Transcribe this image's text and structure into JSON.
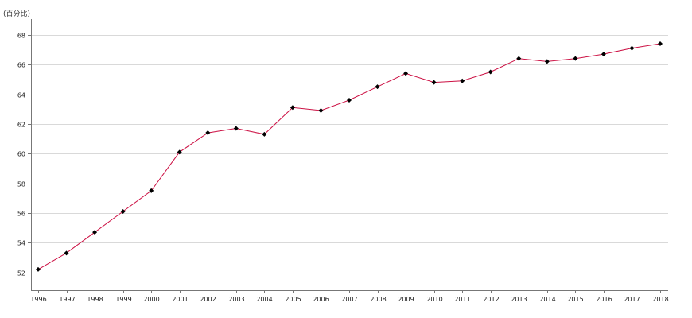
{
  "chart_data": {
    "type": "line",
    "ylabel": "(百分比)",
    "xlabel": "",
    "x": [
      "1996",
      "1997",
      "1998",
      "1999",
      "2000",
      "2001",
      "2002",
      "2003",
      "2004",
      "2005",
      "2006",
      "2007",
      "2008",
      "2009",
      "2010",
      "2011",
      "2012",
      "2013",
      "2014",
      "2015",
      "2016",
      "2017",
      "2018"
    ],
    "series": [
      {
        "values": [
          52.2,
          53.3,
          54.7,
          56.1,
          57.5,
          60.1,
          61.4,
          61.7,
          61.3,
          63.1,
          62.9,
          63.6,
          64.5,
          65.4,
          64.8,
          64.9,
          65.5,
          66.4,
          66.2,
          66.4,
          66.7,
          67.1,
          67.4
        ],
        "line_color": "#cc1144",
        "marker_color": "#000000"
      }
    ],
    "ylim": [
      50.8,
      68.9
    ],
    "yticks": [
      52,
      54,
      56,
      58,
      60,
      62,
      64,
      66,
      68
    ],
    "grid": true,
    "grid_color": "#d9d9d9",
    "axis_color": "#777777"
  }
}
